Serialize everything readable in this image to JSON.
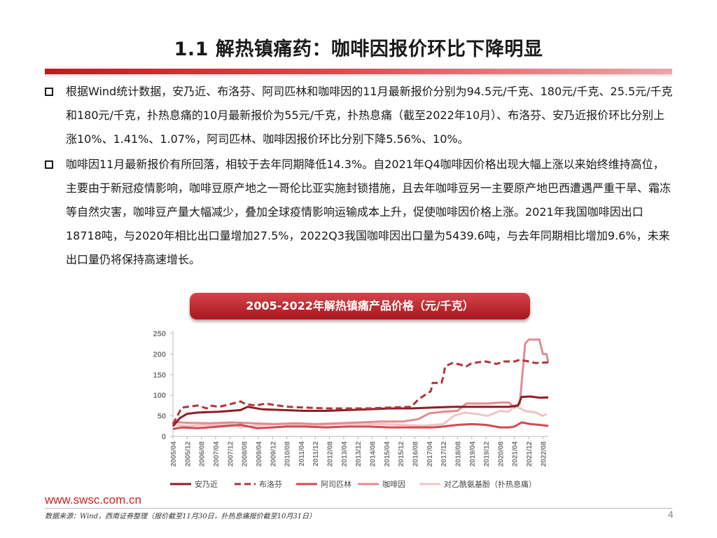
{
  "slide": {
    "title": "1.1 解热镇痛药：咖啡因报价环比下降明显",
    "bullets": [
      "根据Wind统计数据，安乃近、布洛芬、阿司匹林和咖啡因的11月最新报价分别为94.5元/千克、180元/千克、25.5元/千克和180元/千克，扑热息痛的10月最新报价为55元/千克，扑热息痛（截至2022年10月）、布洛芬、安乃近报价环比分别上涨10%、1.41%、1.07%，阿司匹林、咖啡因报价环比分别下降5.56%、10%。",
      "咖啡因11月最新报价有所回落，相较于去年同期降低14.3%。自2021年Q4咖啡因价格出现大幅上涨以来始终维持高位，主要由于新冠疫情影响，咖啡豆原产地之一哥伦比亚实施封锁措施，且去年咖啡豆另一主要原产地巴西遭遇严重干旱、霜冻等自然灾害，咖啡豆产量大幅减少，叠加全球疫情影响运输成本上升，促使咖啡因价格上涨。2021年我国咖啡因出口18718吨，与2020年相比出口量增加27.5%，2022Q3我国咖啡因出口量为5439.6吨，与去年同期相比增加9.6%，未来出口量仍将保持高速增长。"
    ],
    "chart_header": "2005-2022年解热镇痛产品价格（元/千克）",
    "footer_url": "www.swsc.com.cn",
    "footer_source": "数据来源：Wind，西南证券整理（报价截至11月30日，扑热息痛报价截至10月31日）",
    "page_number": "4"
  },
  "chart_data": {
    "type": "line",
    "title": "2005-2022年解热镇痛产品价格（元/千克）",
    "x_start": "2005-04",
    "x_end": "2022-11",
    "x_ticks": [
      "2005/04",
      "2005/12",
      "2006/08",
      "2007/04",
      "2007/12",
      "2008/08",
      "2009/04",
      "2009/12",
      "2010/08",
      "2011/04",
      "2011/12",
      "2012/08",
      "2013/04",
      "2013/12",
      "2014/08",
      "2015/04",
      "2015/12",
      "2016/08",
      "2017/04",
      "2017/12",
      "2018/08",
      "2019/04",
      "2019/12",
      "2020/08",
      "2021/04",
      "2021/12",
      "2022/08"
    ],
    "ylim": [
      0,
      250
    ],
    "y_ticks": [
      0,
      50,
      100,
      150,
      200,
      250
    ],
    "grid": false,
    "legend_position": "bottom",
    "series": [
      {
        "name": "安乃近",
        "color": "#8b1f24",
        "dash": "solid",
        "points": [
          [
            "2005-04",
            25
          ],
          [
            "2005-08",
            45
          ],
          [
            "2005-12",
            55
          ],
          [
            "2006-06",
            58
          ],
          [
            "2007-06",
            60
          ],
          [
            "2008-06",
            64
          ],
          [
            "2008-10",
            72
          ],
          [
            "2009-06",
            66
          ],
          [
            "2010-06",
            64
          ],
          [
            "2011-06",
            62
          ],
          [
            "2012-06",
            62
          ],
          [
            "2013-06",
            64
          ],
          [
            "2014-06",
            66
          ],
          [
            "2015-06",
            68
          ],
          [
            "2016-06",
            68
          ],
          [
            "2017-06",
            70
          ],
          [
            "2018-06",
            72
          ],
          [
            "2019-06",
            72
          ],
          [
            "2020-06",
            72
          ],
          [
            "2021-01",
            72
          ],
          [
            "2021-06",
            75
          ],
          [
            "2021-08",
            96
          ],
          [
            "2022-01",
            97
          ],
          [
            "2022-06",
            94
          ],
          [
            "2022-11",
            94.5
          ]
        ]
      },
      {
        "name": "布洛芬",
        "color": "#b0353a",
        "dash": "dashed",
        "points": [
          [
            "2005-04",
            30
          ],
          [
            "2005-09",
            70
          ],
          [
            "2006-06",
            75
          ],
          [
            "2006-11",
            68
          ],
          [
            "2007-01",
            75
          ],
          [
            "2007-06",
            72
          ],
          [
            "2007-12",
            78
          ],
          [
            "2008-06",
            85
          ],
          [
            "2008-09",
            78
          ],
          [
            "2009-03",
            75
          ],
          [
            "2009-08",
            80
          ],
          [
            "2010-03",
            75
          ],
          [
            "2010-09",
            72
          ],
          [
            "2011-06",
            70
          ],
          [
            "2012-06",
            68
          ],
          [
            "2013-06",
            68
          ],
          [
            "2014-06",
            68
          ],
          [
            "2015-06",
            70
          ],
          [
            "2016-06",
            72
          ],
          [
            "2016-10",
            90
          ],
          [
            "2017-05",
            110
          ],
          [
            "2017-06",
            130
          ],
          [
            "2017-11",
            130
          ],
          [
            "2017-12",
            145
          ],
          [
            "2018-01",
            170
          ],
          [
            "2018-05",
            178
          ],
          [
            "2018-08",
            176
          ],
          [
            "2019-01",
            170
          ],
          [
            "2019-04",
            178
          ],
          [
            "2019-12",
            182
          ],
          [
            "2020-06",
            176
          ],
          [
            "2020-10",
            182
          ],
          [
            "2021-04",
            182
          ],
          [
            "2021-07",
            186
          ],
          [
            "2021-12",
            182
          ],
          [
            "2022-04",
            178
          ],
          [
            "2022-11",
            180
          ]
        ]
      },
      {
        "name": "阿司匹林",
        "color": "#d24b4f",
        "dash": "solid",
        "points": [
          [
            "2005-04",
            18
          ],
          [
            "2005-09",
            22
          ],
          [
            "2006-06",
            20
          ],
          [
            "2007-06",
            24
          ],
          [
            "2008-06",
            28
          ],
          [
            "2009-03",
            20
          ],
          [
            "2009-12",
            22
          ],
          [
            "2010-08",
            24
          ],
          [
            "2011-06",
            24
          ],
          [
            "2012-06",
            22
          ],
          [
            "2013-06",
            24
          ],
          [
            "2014-06",
            24
          ],
          [
            "2015-06",
            22
          ],
          [
            "2016-06",
            22
          ],
          [
            "2017-06",
            22
          ],
          [
            "2017-12",
            24
          ],
          [
            "2018-08",
            28
          ],
          [
            "2019-04",
            30
          ],
          [
            "2019-12",
            28
          ],
          [
            "2020-08",
            22
          ],
          [
            "2021-01",
            22
          ],
          [
            "2021-04",
            24
          ],
          [
            "2021-08",
            34
          ],
          [
            "2022-01",
            30
          ],
          [
            "2022-06",
            28
          ],
          [
            "2022-11",
            25.5
          ]
        ]
      },
      {
        "name": "咖啡因",
        "color": "#e08c8f",
        "dash": "solid",
        "points": [
          [
            "2005-04",
            35
          ],
          [
            "2006-01",
            33
          ],
          [
            "2007-01",
            32
          ],
          [
            "2008-01",
            34
          ],
          [
            "2009-01",
            32
          ],
          [
            "2010-01",
            30
          ],
          [
            "2011-01",
            32
          ],
          [
            "2012-01",
            30
          ],
          [
            "2013-01",
            32
          ],
          [
            "2014-01",
            34
          ],
          [
            "2015-01",
            36
          ],
          [
            "2016-01",
            36
          ],
          [
            "2016-10",
            42
          ],
          [
            "2017-04",
            56
          ],
          [
            "2017-12",
            60
          ],
          [
            "2018-08",
            62
          ],
          [
            "2019-01",
            80
          ],
          [
            "2019-06",
            80
          ],
          [
            "2020-01",
            80
          ],
          [
            "2020-08",
            82
          ],
          [
            "2021-01",
            82
          ],
          [
            "2021-04",
            70
          ],
          [
            "2021-07",
            80
          ],
          [
            "2021-10",
            225
          ],
          [
            "2021-12",
            235
          ],
          [
            "2022-06",
            235
          ],
          [
            "2022-08",
            200
          ],
          [
            "2022-10",
            200
          ],
          [
            "2022-11",
            180
          ]
        ]
      },
      {
        "name": "对乙酰氨基酚（扑热息痛）",
        "color": "#f2c4c5",
        "dash": "solid",
        "points": [
          [
            "2005-04",
            28
          ],
          [
            "2006-01",
            26
          ],
          [
            "2007-01",
            28
          ],
          [
            "2008-01",
            30
          ],
          [
            "2008-06",
            22
          ],
          [
            "2009-01",
            26
          ],
          [
            "2010-01",
            30
          ],
          [
            "2011-01",
            28
          ],
          [
            "2012-01",
            28
          ],
          [
            "2013-01",
            30
          ],
          [
            "2014-01",
            30
          ],
          [
            "2015-01",
            30
          ],
          [
            "2016-01",
            28
          ],
          [
            "2017-01",
            26
          ],
          [
            "2017-12",
            30
          ],
          [
            "2018-06",
            50
          ],
          [
            "2018-12",
            58
          ],
          [
            "2019-06",
            55
          ],
          [
            "2020-01",
            50
          ],
          [
            "2020-08",
            62
          ],
          [
            "2021-01",
            60
          ],
          [
            "2021-04",
            75
          ],
          [
            "2021-10",
            62
          ],
          [
            "2022-04",
            58
          ],
          [
            "2022-08",
            50
          ],
          [
            "2022-10",
            55
          ]
        ]
      }
    ],
    "legend": [
      "安乃近",
      "布洛芬",
      "阿司匹林",
      "咖啡因",
      "对乙酰氨基酚（扑热息痛）"
    ]
  }
}
